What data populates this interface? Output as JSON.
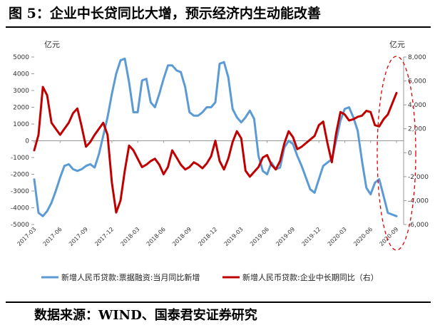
{
  "title": "图 5：企业中长贷同比大增，预示经济内生动能改善",
  "source": "数据来源：WIND、国泰君安证券研究",
  "colors": {
    "series1": "#5b9bd5",
    "series2": "#c00000",
    "ellipse": "#e00000"
  },
  "chart_data": {
    "type": "line",
    "left_unit": "亿元",
    "right_unit": "亿元",
    "left_ylim": [
      -5000,
      5000
    ],
    "left_ticks": [
      5000,
      4000,
      3000,
      2000,
      1000,
      0,
      -1000,
      -2000,
      -3000,
      -4000,
      -5000
    ],
    "right_ylim": [
      -6000,
      8000
    ],
    "right_ticks": [
      "8,000",
      "6,000",
      "4,000",
      "2,000",
      "0",
      "-2,000",
      "-4,000",
      "-6,000"
    ],
    "right_tick_values": [
      8000,
      6000,
      4000,
      2000,
      0,
      -2000,
      -4000,
      -6000
    ],
    "x_ticks": [
      "2017-03",
      "2017-06",
      "2017-09",
      "2017-12",
      "2018-03",
      "2018-06",
      "2018-09",
      "2018-12",
      "2019-03",
      "2019-06",
      "2019-09",
      "2019-12",
      "2020-03",
      "2020-06",
      "2020-09"
    ],
    "x_tick_index": [
      0,
      3,
      6,
      9,
      12,
      15,
      18,
      21,
      24,
      27,
      30,
      33,
      36,
      39,
      42
    ],
    "x_range": [
      0,
      42
    ],
    "series": [
      {
        "name": "新增人民币贷款:票据融资:当月同比新增",
        "axis": "left",
        "points": [
          [
            0,
            -2300
          ],
          [
            0.5,
            -4300
          ],
          [
            1,
            -4500
          ],
          [
            1.5,
            -4200
          ],
          [
            2,
            -3700
          ],
          [
            2.5,
            -3000
          ],
          [
            3,
            -2200
          ],
          [
            3.5,
            -1500
          ],
          [
            4,
            -1400
          ],
          [
            4.5,
            -1700
          ],
          [
            5,
            -1800
          ],
          [
            5.5,
            -1700
          ],
          [
            6,
            -1500
          ],
          [
            6.5,
            -1400
          ],
          [
            7,
            -1600
          ],
          [
            7.5,
            -800
          ],
          [
            8,
            300
          ],
          [
            8.5,
            1400
          ],
          [
            9,
            2800
          ],
          [
            9.5,
            4000
          ],
          [
            10,
            4800
          ],
          [
            10.5,
            4900
          ],
          [
            11,
            3500
          ],
          [
            11.5,
            1700
          ],
          [
            12,
            1700
          ],
          [
            12.5,
            3600
          ],
          [
            13,
            3700
          ],
          [
            13.5,
            2300
          ],
          [
            14,
            2000
          ],
          [
            14.5,
            2800
          ],
          [
            15,
            3700
          ],
          [
            15.5,
            4500
          ],
          [
            16,
            4500
          ],
          [
            16.5,
            4200
          ],
          [
            17,
            4100
          ],
          [
            17.5,
            3200
          ],
          [
            18,
            1700
          ],
          [
            18.5,
            1500
          ],
          [
            19,
            1500
          ],
          [
            19.5,
            1700
          ],
          [
            20,
            2000
          ],
          [
            20.5,
            2000
          ],
          [
            21,
            2300
          ],
          [
            21.5,
            4600
          ],
          [
            22,
            4700
          ],
          [
            22.5,
            3800
          ],
          [
            23,
            1900
          ],
          [
            23.5,
            1400
          ],
          [
            24,
            1100
          ],
          [
            24.5,
            1400
          ],
          [
            25,
            1800
          ],
          [
            25.5,
            1300
          ],
          [
            26,
            -900
          ],
          [
            26.5,
            -1800
          ],
          [
            27,
            -2000
          ],
          [
            27.5,
            -1300
          ],
          [
            28,
            -1700
          ],
          [
            28.5,
            -1600
          ],
          [
            29,
            -400
          ],
          [
            29.5,
            0
          ],
          [
            30,
            -200
          ],
          [
            30.5,
            -900
          ],
          [
            31,
            -1500
          ],
          [
            31.5,
            -2200
          ],
          [
            32,
            -2900
          ],
          [
            32.5,
            -3100
          ],
          [
            33,
            -2300
          ],
          [
            33.5,
            -1500
          ],
          [
            34,
            -1300
          ],
          [
            34.5,
            -1100
          ],
          [
            35,
            0
          ],
          [
            35.5,
            1200
          ],
          [
            36,
            1900
          ],
          [
            36.5,
            2000
          ],
          [
            37,
            1400
          ],
          [
            37.5,
            600
          ],
          [
            38,
            -1200
          ],
          [
            38.5,
            -2800
          ],
          [
            39,
            -3200
          ],
          [
            39.5,
            -2500
          ],
          [
            40,
            -2300
          ],
          [
            40.5,
            -3300
          ],
          [
            41,
            -4300
          ],
          [
            42,
            -4500
          ]
        ]
      },
      {
        "name": "新增人民币贷款:企业中长期同比（右）",
        "axis": "right",
        "points": [
          [
            0,
            200
          ],
          [
            0.5,
            1500
          ],
          [
            1,
            5500
          ],
          [
            1.5,
            4800
          ],
          [
            2,
            2500
          ],
          [
            2.5,
            2000
          ],
          [
            3,
            1500
          ],
          [
            3.5,
            2000
          ],
          [
            4,
            2500
          ],
          [
            4.5,
            3300
          ],
          [
            5,
            3700
          ],
          [
            5.5,
            2200
          ],
          [
            6,
            500
          ],
          [
            6.5,
            900
          ],
          [
            7,
            1500
          ],
          [
            7.5,
            2000
          ],
          [
            8,
            2500
          ],
          [
            8.5,
            1500
          ],
          [
            9,
            -2500
          ],
          [
            9.5,
            -5000
          ],
          [
            10,
            -4000
          ],
          [
            10.5,
            -1500
          ],
          [
            11,
            600
          ],
          [
            11.5,
            200
          ],
          [
            12,
            -500
          ],
          [
            12.5,
            -1200
          ],
          [
            13,
            -1000
          ],
          [
            13.5,
            -700
          ],
          [
            14,
            -500
          ],
          [
            14.5,
            -1000
          ],
          [
            15,
            -1800
          ],
          [
            15.5,
            -1200
          ],
          [
            16,
            200
          ],
          [
            16.5,
            -400
          ],
          [
            17,
            -1000
          ],
          [
            17.5,
            -1400
          ],
          [
            18,
            -1200
          ],
          [
            18.5,
            -800
          ],
          [
            19,
            -1000
          ],
          [
            19.5,
            -1300
          ],
          [
            20,
            -900
          ],
          [
            20.5,
            -300
          ],
          [
            21,
            1000
          ],
          [
            21.5,
            -700
          ],
          [
            22,
            -1400
          ],
          [
            22.5,
            -500
          ],
          [
            23,
            900
          ],
          [
            23.5,
            1800
          ],
          [
            24,
            1200
          ],
          [
            24.5,
            -1500
          ],
          [
            25,
            -2000
          ],
          [
            25.5,
            -1600
          ],
          [
            26,
            -1200
          ],
          [
            26.5,
            -400
          ],
          [
            27,
            -200
          ],
          [
            27.5,
            -1000
          ],
          [
            28,
            -1400
          ],
          [
            28.5,
            -700
          ],
          [
            29,
            800
          ],
          [
            29.5,
            1800
          ],
          [
            30,
            1300
          ],
          [
            30.5,
            300
          ],
          [
            31,
            500
          ],
          [
            31.5,
            800
          ],
          [
            32,
            1100
          ],
          [
            32.5,
            1400
          ],
          [
            33,
            2300
          ],
          [
            33.5,
            2600
          ],
          [
            34,
            800
          ],
          [
            34.5,
            -800
          ],
          [
            35,
            1600
          ],
          [
            35.5,
            3400
          ],
          [
            36,
            3200
          ],
          [
            36.5,
            2700
          ],
          [
            37,
            2800
          ],
          [
            37.5,
            3000
          ],
          [
            38,
            3100
          ],
          [
            38.5,
            3500
          ],
          [
            39,
            3400
          ],
          [
            39.5,
            2300
          ],
          [
            40,
            2200
          ],
          [
            40.5,
            2800
          ],
          [
            41,
            3200
          ],
          [
            42,
            5000
          ]
        ]
      }
    ],
    "annotation": "dashed-ellipse-recent-period"
  }
}
